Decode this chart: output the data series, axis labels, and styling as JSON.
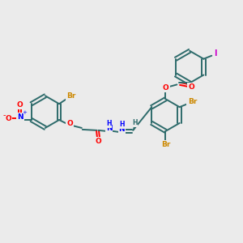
{
  "background_color": "#EBEBEB",
  "bond_color": "#2D6B6B",
  "atom_colors": {
    "Br": "#CC8800",
    "O": "#FF0000",
    "N": "#0000FF",
    "I": "#CC00CC",
    "H": "#2D6B6B",
    "C": "#2D6B6B"
  }
}
